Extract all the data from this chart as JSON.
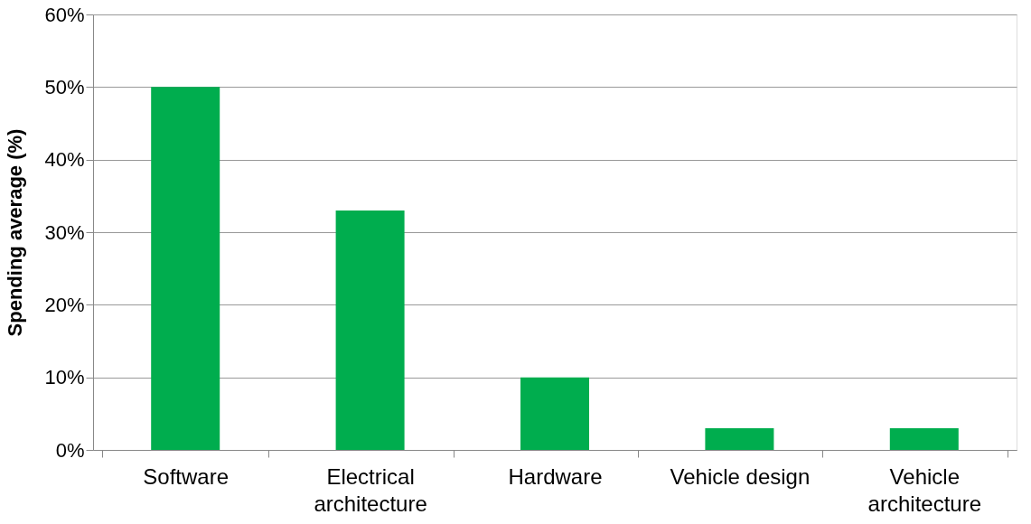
{
  "chart_data": {
    "type": "bar",
    "ylabel": "Spending average (%)",
    "categories": [
      "Software",
      "Electrical architecture",
      "Hardware",
      "Vehicle design",
      "Vehicle architecture"
    ],
    "values": [
      50,
      33,
      10,
      3,
      3
    ],
    "color": "#00ad4e",
    "ylim": [
      0,
      60
    ],
    "yticks": [
      {
        "value": 0,
        "label": "0%"
      },
      {
        "value": 10,
        "label": "10%"
      },
      {
        "value": 20,
        "label": "20%"
      },
      {
        "value": 30,
        "label": "30%"
      },
      {
        "value": 40,
        "label": "40%"
      },
      {
        "value": 50,
        "label": "50%"
      },
      {
        "value": 60,
        "label": "60%"
      }
    ],
    "grid": "y"
  }
}
